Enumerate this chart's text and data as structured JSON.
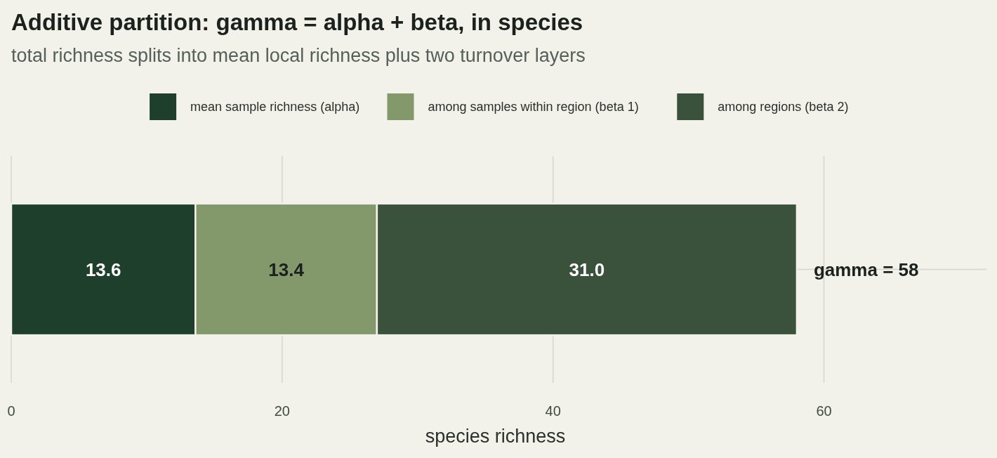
{
  "chart_data": {
    "type": "bar",
    "orientation": "horizontal",
    "stacked": true,
    "title": "Additive partition: gamma = alpha + beta, in species",
    "subtitle": "total richness splits into mean local richness plus two turnover layers",
    "xlabel": "species richness",
    "categories": [
      null
    ],
    "series": [
      {
        "name": "mean sample richness (alpha)",
        "color": "#1e3f2c",
        "values": [
          13.6
        ],
        "value_labels": [
          "13.6"
        ]
      },
      {
        "name": "among samples within region (beta 1)",
        "color": "#84996b",
        "values": [
          13.4
        ],
        "value_labels": [
          "13.4"
        ]
      },
      {
        "name": "among regions (beta 2)",
        "color": "#3a513c",
        "values": [
          31.0
        ],
        "value_labels": [
          "31.0"
        ]
      }
    ],
    "annotations": [
      {
        "text": "gamma = 58",
        "x": 58
      }
    ],
    "xlim": [
      0,
      72
    ],
    "xticks": [
      0,
      20,
      40,
      60
    ],
    "grid": true,
    "legend": "top"
  }
}
